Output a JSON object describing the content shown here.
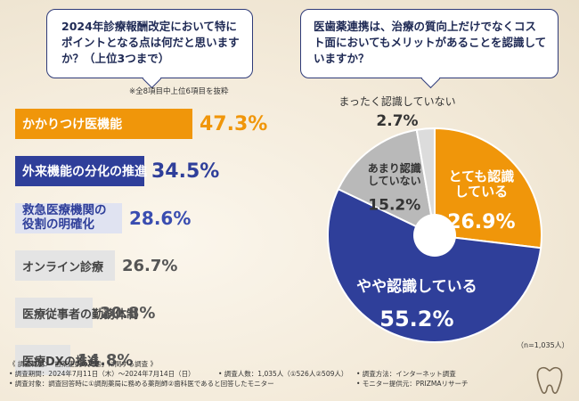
{
  "question1": {
    "text": "2024年診療報酬改定において特にポイントとなる点は何だと思いますか？（上位3つまで）"
  },
  "question2": {
    "text": "医歯薬連携は、治療の質向上だけでなくコスト面においてもメリットがあることを認識していますか？"
  },
  "note": "※全8項目中上位6項目を抜粋",
  "sample_size": "（n=1,035人）",
  "chart_data": [
    {
      "type": "bar",
      "title": "2024年診療報酬改定において特にポイントとなる点は何だと思いますか？（上位3つまで）",
      "categories": [
        "かかりつけ医機能",
        "外来機能の分化の推進",
        "救急医療機関の役割の明確化",
        "オンライン診療",
        "医療従事者の勤務体制",
        "医療DXの推進"
      ],
      "labels_display": [
        [
          "かかりつけ医機能"
        ],
        [
          "外来機能の分化の推進"
        ],
        [
          "救急医療機関の",
          "役割の明確化"
        ],
        [
          "オンライン診療"
        ],
        [
          "医療従事者の勤務体制"
        ],
        [
          "医療DXの推進"
        ]
      ],
      "values": [
        47.3,
        34.5,
        28.6,
        26.7,
        20.8,
        14.8
      ],
      "value_labels": [
        "47.3%",
        "34.5%",
        "28.6%",
        "26.7%",
        "20.8%",
        "14.8%"
      ],
      "styles": [
        "orange",
        "navy",
        "light",
        "gray",
        "gray",
        "gray"
      ],
      "xlim": [
        0,
        50
      ]
    },
    {
      "type": "pie",
      "title": "医歯薬連携は、治療の質向上だけでなくコスト面においてもメリットがあることを認識していますか？",
      "slices": [
        {
          "label": "とても認識している",
          "lines": [
            "とても認識",
            "している"
          ],
          "value": 26.9,
          "display": "26.9%",
          "color": "#f0960a"
        },
        {
          "label": "やや認識している",
          "lines": [
            "やや認識している"
          ],
          "value": 55.2,
          "display": "55.2%",
          "color": "#2f3f9a"
        },
        {
          "label": "あまり認識していない",
          "lines": [
            "あまり認識",
            "していない"
          ],
          "value": 15.2,
          "display": "15.2%",
          "color": "#b9b9b9"
        },
        {
          "label": "まったく認識していない",
          "lines": [
            "まったく認識していない"
          ],
          "value": 2.7,
          "display": "2.7%",
          "color": "#dcdcdc"
        }
      ],
      "donut": true
    }
  ],
  "footer": {
    "title": "《 調査概要：「歯薬連携の実態」に関する調査 》",
    "period": "• 調査期間：2024年7月11日（木）〜2024年7月14日（日）",
    "people": "• 調査人数：1,035人（①526人②509人）",
    "method": "• 調査方法：インターネット調査",
    "target": "• 調査対象：調査回答時に①調剤薬局に務める薬剤師②歯科医であると回答したモニター",
    "provider": "• モニター提供元：PRIZMAリサーチ"
  },
  "colors": {
    "orange": "#f0960a",
    "navy": "#2f3f9a",
    "light": "#e0e3f1",
    "gray": "#e4e4e4"
  }
}
